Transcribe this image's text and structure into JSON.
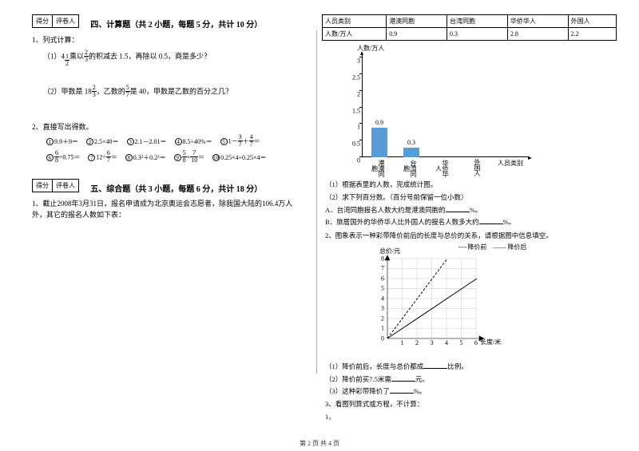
{
  "scoreHeader": {
    "score": "得分",
    "reviewer": "评卷人"
  },
  "section4": {
    "title": "四、计算题（共 2 小题，每题 5 分，共计 10 分）",
    "q1_intro": "1、列式计算：",
    "q1a_pre": "（1）4",
    "q1a_f1n": "1",
    "q1a_f1d": "2",
    "q1a_mid": "乘以",
    "q1a_f2n": "2",
    "q1a_f2d": "3",
    "q1a_post": "的积减去 1.5，再除以 0.5，商是多少？",
    "q1b_pre": "（2）甲数是 18",
    "q1b_f1n": "2",
    "q1b_f1d": "3",
    "q1b_mid": "，乙数的",
    "q1b_f2n": "5",
    "q1b_f2d": "7",
    "q1b_post": "是 40，甲数是乙数的百分之几？",
    "q2_intro": "2、直接写出得数。",
    "row1": {
      "c1": "9.9＋9＝",
      "c2": "2.5×40＝",
      "c3": "2.1－2.01＝",
      "c4": "8.5÷40%＝",
      "c5a": "1－",
      "c5fn": "3",
      "c5fd": "7",
      "c5b": "＋",
      "c5gn": "4",
      "c5gd": "7",
      "c5c": "＝"
    },
    "row2": {
      "c6fn": "6",
      "c6fd": "8",
      "c6a": "÷0.75＝",
      "c7a": "12÷",
      "c7fn": "6",
      "c7fd": "7",
      "c7b": "＝",
      "c8": "0.3²＋0.2²＝",
      "c9fn": "5",
      "c9fd": "8",
      "c9a": "×",
      "c9gn": "7",
      "c9gd": "10",
      "c9b": "＝",
      "c10": "0.25×4÷0.25×4＝"
    }
  },
  "section5": {
    "title": "五、综合题（共 3 小题，每题 6 分，共计 18 分）",
    "q1": "1、截止2008年3月31日，报名申请成为北京奥运会志愿者，除我国大陆的106.4万人外，其它的报名人数如下表：",
    "q3": "3、看图列算式或方程，不计算：",
    "q3_1": "1、"
  },
  "table": {
    "h1": "人员类别",
    "h2": "港澳同胞",
    "h3": "台湾同胞",
    "h4": "华侨华人",
    "h5": "外国人",
    "r1": "人数/万人",
    "v1": "0.9",
    "v2": "0.3",
    "v3": "2.8",
    "v4": "2.2"
  },
  "barChart": {
    "yTitle": "人数/万人",
    "xTitle": "人员类别",
    "ticks": [
      "0",
      "0.5",
      "1",
      "1.5",
      "2",
      "2.5",
      "3"
    ],
    "cats": [
      "港澳同胞",
      "台湾同胞",
      "华侨华人",
      "外国人"
    ],
    "bars": [
      {
        "label": "0.9",
        "h": 0.9,
        "color": "#5b9bd5"
      },
      {
        "label": "0.3",
        "h": 0.3,
        "color": "#5b9bd5"
      }
    ]
  },
  "subQ1": {
    "a": "（1）根据表里的人数，完成统计图。",
    "b": "（2）求下列百分数。（百分号前保留一位小数）",
    "c_pre": "A．台湾同胞报名人数大约是港澳同胞的",
    "c_post": "%。",
    "d_pre": "B．旅居国外的华侨华人比外国人的报名人数多大约",
    "d_post": "%。"
  },
  "q2": {
    "intro": "2、图象表示一种彩带降价前后的长度与总价的关系，请根据图中信息填空。",
    "legend1": "降价前",
    "legend2": "降价后",
    "yTitle": "总价/元",
    "xTitle": "长度/米",
    "yt": [
      "0",
      "1",
      "2",
      "3",
      "4",
      "5",
      "6",
      "7",
      "8"
    ],
    "xt": [
      "1",
      "2",
      "3",
      "4",
      "5",
      "6"
    ],
    "a_pre": "（1）降价前后，长度与总价都成",
    "a_post": "比例。",
    "b_pre": "（2）降价前买7.5米需",
    "b_post": "元。",
    "c_pre": "（3）这种彩带降价了",
    "c_post": "%。"
  },
  "footer": "第 2 页 共 4 页"
}
